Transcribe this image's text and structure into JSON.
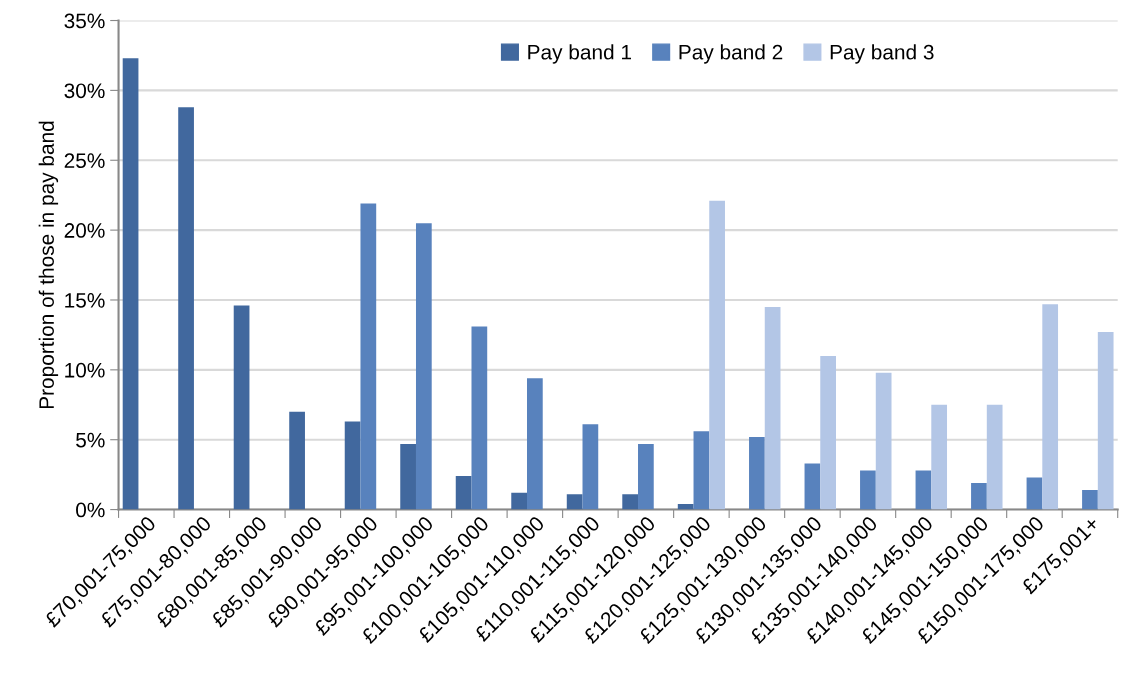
{
  "chart_data": {
    "type": "bar",
    "ylabel": "Proportion of those in pay band",
    "categories": [
      "£70,001-75,000",
      "£75,001-80,000",
      "£80,001-85,000",
      "£85,001-90,000",
      "£90,001-95,000",
      "£95,001-100,000",
      "£100,001-105,000",
      "£105,001-110,000",
      "£110,001-115,000",
      "£115,001-120,000",
      "£120,001-125,000",
      "£125,001-130,000",
      "£130,001-135,000",
      "£135,001-140,000",
      "£140,001-145,000",
      "£145,001-150,000",
      "£150,001-175,000",
      "£175,001+"
    ],
    "series": [
      {
        "name": "Pay band 1",
        "color": "#41689e",
        "values": [
          32.3,
          28.8,
          14.6,
          7.0,
          6.3,
          4.7,
          2.4,
          1.2,
          1.1,
          1.1,
          0.4,
          null,
          null,
          null,
          null,
          null,
          null,
          null
        ]
      },
      {
        "name": "Pay band 2",
        "color": "#5882bd",
        "values": [
          null,
          null,
          null,
          null,
          21.9,
          20.5,
          13.1,
          9.4,
          6.1,
          4.7,
          5.6,
          5.2,
          3.3,
          2.8,
          2.8,
          1.9,
          2.3,
          1.4
        ]
      },
      {
        "name": "Pay band 3",
        "color": "#b3c6e6",
        "values": [
          null,
          null,
          null,
          null,
          null,
          null,
          null,
          null,
          null,
          null,
          22.1,
          14.5,
          11.0,
          9.8,
          7.5,
          7.5,
          14.7,
          12.7
        ]
      }
    ],
    "ylim": [
      0,
      35
    ],
    "yticks": [
      {
        "value": 0,
        "label": "0%"
      },
      {
        "value": 5,
        "label": "5%"
      },
      {
        "value": 10,
        "label": "10%"
      },
      {
        "value": 15,
        "label": "15%"
      },
      {
        "value": 20,
        "label": "20%"
      },
      {
        "value": 25,
        "label": "25%"
      },
      {
        "value": 30,
        "label": "30%"
      },
      {
        "value": 35,
        "label": "35%"
      }
    ],
    "grid": "y",
    "legend": "top"
  }
}
